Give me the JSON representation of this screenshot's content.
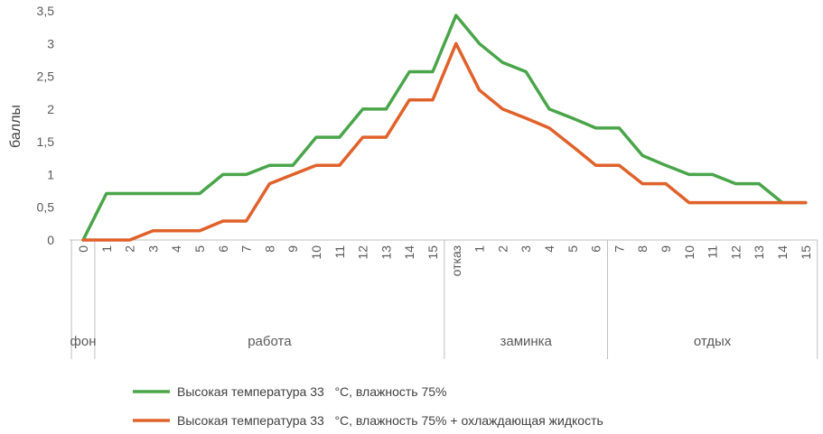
{
  "chart_data": {
    "type": "line",
    "ylabel": "баллы",
    "ylim": [
      0,
      3.5
    ],
    "yticks": [
      "0",
      "0,5",
      "1",
      "1,5",
      "2",
      "2,5",
      "3",
      "3,5"
    ],
    "ytick_values": [
      0,
      0.5,
      1,
      1.5,
      2,
      2.5,
      3,
      3.5
    ],
    "categories": [
      "0",
      "1",
      "2",
      "3",
      "4",
      "5",
      "6",
      "7",
      "8",
      "9",
      "10",
      "11",
      "12",
      "13",
      "14",
      "15",
      "отказ",
      "1",
      "2",
      "3",
      "4",
      "5",
      "6",
      "7",
      "8",
      "9",
      "10",
      "11",
      "12",
      "13",
      "14",
      "15"
    ],
    "groups": [
      {
        "label": "фон",
        "start": 0,
        "end": 0
      },
      {
        "label": "работа",
        "start": 1,
        "end": 15
      },
      {
        "label": "заминка",
        "start": 16,
        "end": 22
      },
      {
        "label": "отдых",
        "start": 23,
        "end": 31
      }
    ],
    "series": [
      {
        "name": "Высокая температура 33   °С, влажность 75%",
        "color": "#4aa54a",
        "values": [
          0,
          0.71,
          0.71,
          0.71,
          0.71,
          0.71,
          1.0,
          1.0,
          1.14,
          1.14,
          1.57,
          1.57,
          2.0,
          2.0,
          2.57,
          2.57,
          3.43,
          3.0,
          2.71,
          2.57,
          2.0,
          1.86,
          1.71,
          1.71,
          1.29,
          1.14,
          1.0,
          1.0,
          0.86,
          0.86,
          0.57,
          0.57
        ]
      },
      {
        "name": "Высокая температура 33   °С, влажность 75% + охлаждающая жидкость",
        "color": "#e0622a",
        "values": [
          0,
          0,
          0,
          0.14,
          0.14,
          0.14,
          0.29,
          0.29,
          0.86,
          1.0,
          1.14,
          1.14,
          1.57,
          1.57,
          2.14,
          2.14,
          3.0,
          2.29,
          2.0,
          1.86,
          1.71,
          1.43,
          1.14,
          1.14,
          0.86,
          0.86,
          0.57,
          0.57,
          0.57,
          0.57,
          0.57,
          0.57
        ]
      }
    ],
    "grid": false,
    "legend": "bottom"
  }
}
